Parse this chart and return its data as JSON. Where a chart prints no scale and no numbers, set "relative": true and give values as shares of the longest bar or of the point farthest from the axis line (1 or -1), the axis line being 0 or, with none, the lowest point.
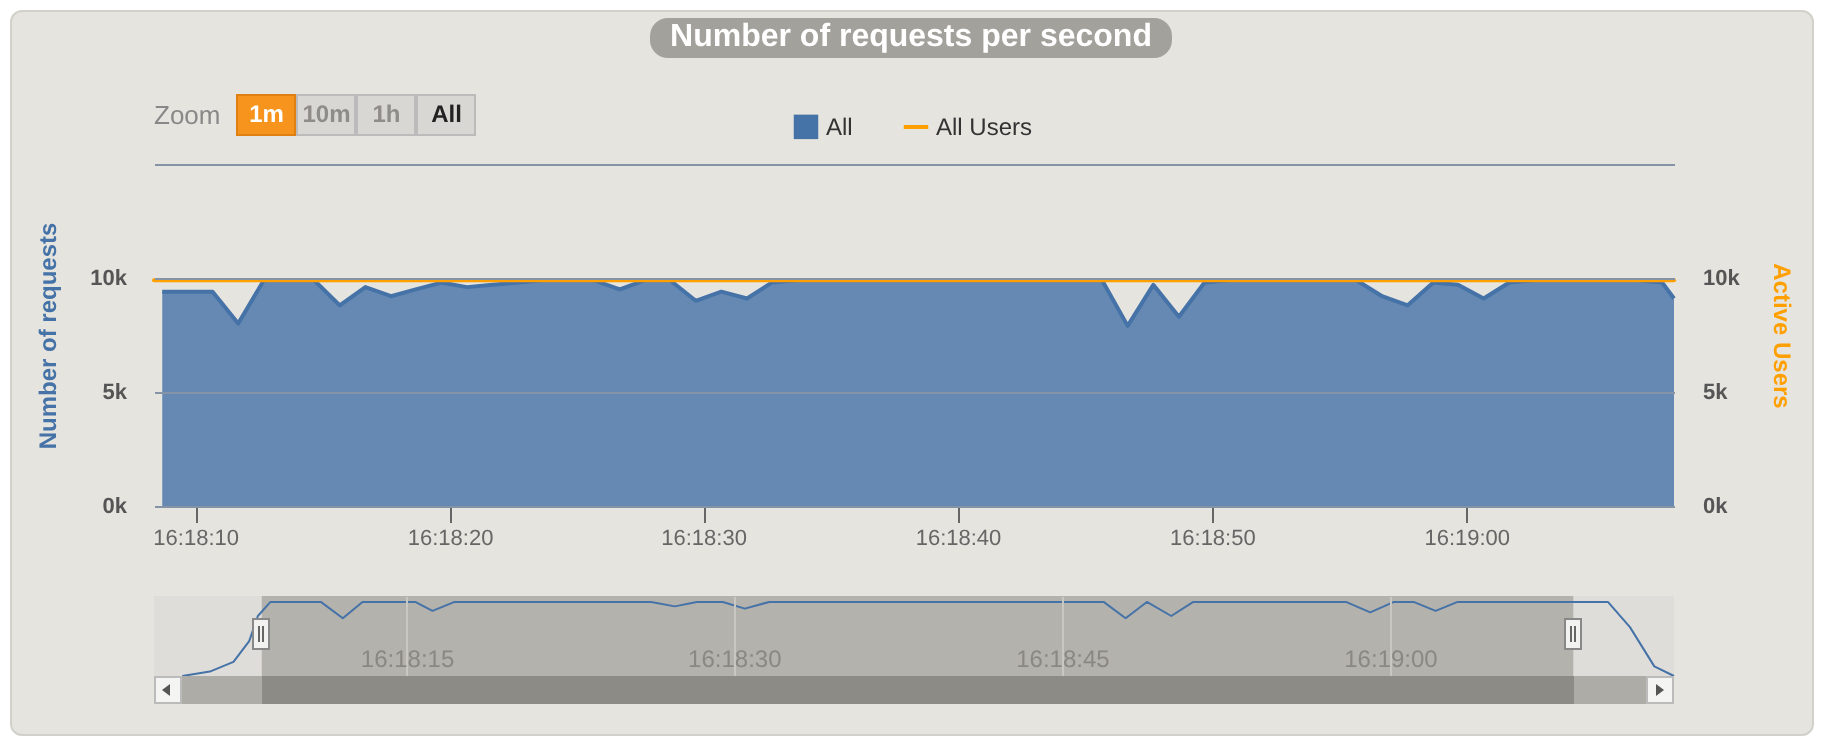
{
  "chart_data": [
    {
      "type": "area",
      "title": "Number of requests per second",
      "ylabel": "Number of requests",
      "y2label": "Active Users",
      "annotations": [
        "Zoom",
        "1m",
        "10m",
        "1h",
        "All"
      ],
      "xlim": [
        16.30233,
        16.31894
      ],
      "xticks": [
        {
          "value": 16.30278,
          "label": "16:18:10"
        },
        {
          "value": 16.30556,
          "label": "16:18:20"
        },
        {
          "value": 16.30833,
          "label": "16:18:30"
        },
        {
          "value": 16.31111,
          "label": "16:18:40"
        },
        {
          "value": 16.31389,
          "label": "16:18:50"
        },
        {
          "value": 16.31667,
          "label": "16:19:00"
        }
      ],
      "ylim": [
        0,
        15000
      ],
      "yticks": [
        {
          "value": 0,
          "label": "0k"
        },
        {
          "value": 5000,
          "label": "5k"
        },
        {
          "value": 10000,
          "label": "10k"
        },
        {
          "value": 15000,
          "label": null
        }
      ],
      "y2lim": [
        0,
        15000
      ],
      "y2ticks": [
        {
          "value": 0,
          "label": "0k"
        },
        {
          "value": 5000,
          "label": "5k"
        },
        {
          "value": 10000,
          "label": "10k"
        }
      ],
      "grid": "y",
      "legend": "top",
      "series": [
        {
          "name": "All",
          "color": "#4572a7",
          "x": [
            16.30242,
            16.30269,
            16.30297,
            16.30325,
            16.30353,
            16.30381,
            16.30408,
            16.30436,
            16.30464,
            16.30492,
            16.30519,
            16.30547,
            16.30575,
            16.30603,
            16.30631,
            16.30658,
            16.30686,
            16.30714,
            16.30742,
            16.30769,
            16.30797,
            16.30825,
            16.30853,
            16.30881,
            16.30908,
            16.30936,
            16.30964,
            16.30992,
            16.31019,
            16.31047,
            16.31075,
            16.31103,
            16.31131,
            16.31158,
            16.31186,
            16.31214,
            16.31242,
            16.31269,
            16.31297,
            16.31325,
            16.31353,
            16.31381,
            16.31408,
            16.31436,
            16.31464,
            16.31492,
            16.31519,
            16.31547,
            16.31575,
            16.31603,
            16.31631,
            16.31658,
            16.31686,
            16.31714,
            16.31742,
            16.31769,
            16.31797,
            16.31825,
            16.31853,
            16.31881,
            16.31894
          ],
          "values": [
            9400,
            9400,
            9400,
            8000,
            9900,
            9900,
            9900,
            8800,
            9600,
            9200,
            9500,
            9800,
            9600,
            9700,
            9800,
            9900,
            9900,
            9900,
            9500,
            9900,
            9900,
            9000,
            9400,
            9100,
            9800,
            9900,
            9900,
            9900,
            9900,
            9900,
            9900,
            9900,
            9900,
            9900,
            9900,
            9900,
            9900,
            9900,
            7900,
            9700,
            8300,
            9800,
            9900,
            9900,
            9900,
            9900,
            9900,
            9900,
            9200,
            8800,
            9800,
            9700,
            9100,
            9800,
            9900,
            9900,
            9900,
            9900,
            9900,
            9800,
            9100
          ]
        },
        {
          "name": "All Users",
          "type": "line",
          "axis": "y2",
          "color": "#ffa000",
          "x": [
            16.30233,
            16.31894
          ],
          "values": [
            9900,
            9900
          ]
        }
      ]
    },
    {
      "type": "line",
      "relative": true,
      "xlim": [
        16.30096,
        16.32028
      ],
      "xticks": [
        {
          "value": 16.30417,
          "label": "16:18:15"
        },
        {
          "value": 16.30833,
          "label": "16:18:30"
        },
        {
          "value": 16.3125,
          "label": "16:18:45"
        },
        {
          "value": 16.31667,
          "label": "16:19:00"
        }
      ],
      "grid": "x",
      "bands": [
        {
          "axis": "x",
          "from": 16.30233,
          "to": 16.319,
          "color": "#b4b2ad"
        }
      ],
      "x": [
        16.30132,
        16.30167,
        16.30197,
        16.30217,
        16.30228,
        16.30244,
        16.30308,
        16.30336,
        16.30361,
        16.30428,
        16.3045,
        16.30478,
        16.30728,
        16.30758,
        16.30786,
        16.30819,
        16.30847,
        16.30878,
        16.31303,
        16.31331,
        16.31358,
        16.31389,
        16.31417,
        16.31611,
        16.31642,
        16.31672,
        16.31697,
        16.31725,
        16.31753,
        16.31944,
        16.31972,
        16.32003,
        16.32028
      ],
      "series": [
        {
          "color": "#4572a7",
          "values": [
            0,
            0.06,
            0.19,
            0.47,
            0.81,
            1,
            1,
            0.78,
            1,
            1,
            0.88,
            1,
            1,
            0.94,
            1,
            1,
            0.91,
            1,
            1,
            0.78,
            1,
            0.81,
            1,
            1,
            0.86,
            1,
            1,
            0.88,
            1,
            1,
            0.66,
            0.13,
            0
          ]
        }
      ]
    }
  ]
}
